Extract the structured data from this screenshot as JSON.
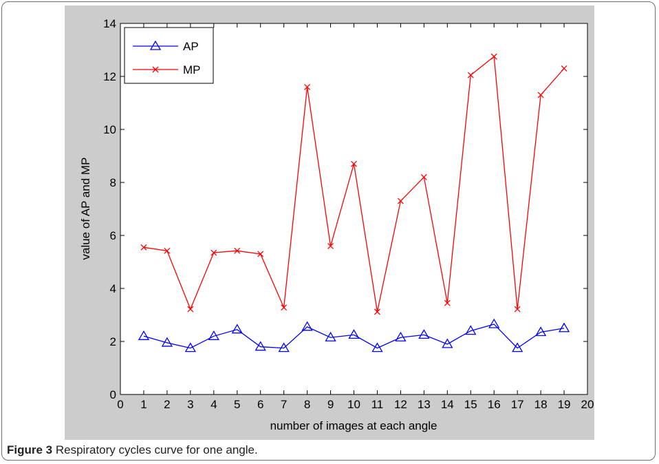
{
  "caption": {
    "label": "Figure 3",
    "text": "Respiratory cycles curve for one angle."
  },
  "chart_data": {
    "type": "line",
    "xlabel": "number of images at each angle",
    "ylabel": "value of AP and MP",
    "xlim": [
      0,
      20
    ],
    "ylim": [
      0,
      14
    ],
    "xticks": [
      0,
      1,
      2,
      3,
      4,
      5,
      6,
      7,
      8,
      9,
      10,
      11,
      12,
      13,
      14,
      15,
      16,
      17,
      18,
      19,
      20
    ],
    "yticks": [
      0,
      2,
      4,
      6,
      8,
      10,
      12,
      14
    ],
    "grid": false,
    "legend_position": "top-left",
    "x": [
      1,
      2,
      3,
      4,
      5,
      6,
      7,
      8,
      9,
      10,
      11,
      12,
      13,
      14,
      15,
      16,
      17,
      18,
      19
    ],
    "series": [
      {
        "name": "AP",
        "color": "#0000ff",
        "marker": "triangle",
        "values": [
          2.2,
          1.95,
          1.75,
          2.2,
          2.45,
          1.8,
          1.75,
          2.55,
          2.15,
          2.25,
          1.75,
          2.15,
          2.25,
          1.9,
          2.4,
          2.65,
          1.75,
          2.35,
          2.5
        ]
      },
      {
        "name": "MP",
        "color": "#ff0000",
        "marker": "x",
        "values": [
          5.55,
          5.42,
          3.22,
          5.35,
          5.42,
          5.3,
          3.28,
          11.6,
          5.6,
          8.7,
          3.12,
          7.3,
          8.2,
          3.45,
          12.05,
          12.75,
          3.22,
          11.3,
          12.3
        ]
      }
    ]
  }
}
